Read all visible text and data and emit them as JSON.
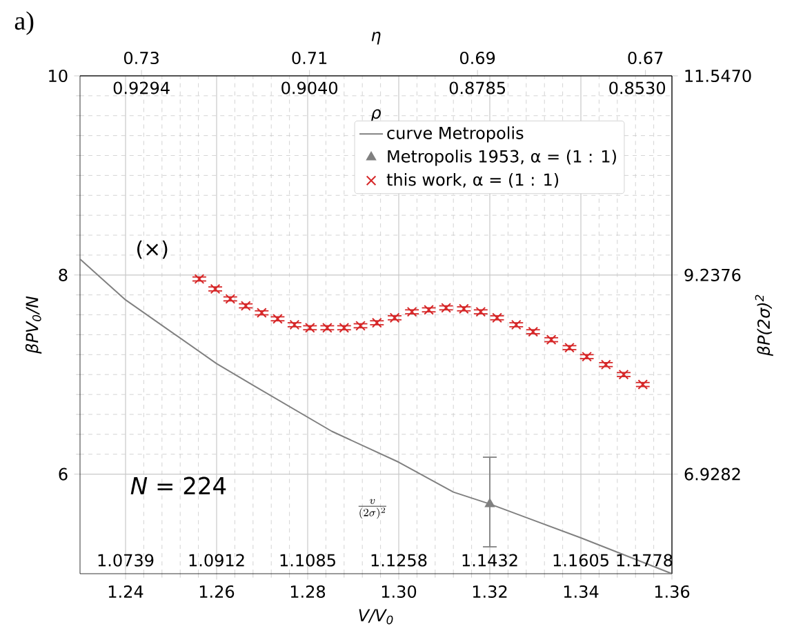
{
  "chart_data": {
    "type": "scatter",
    "title": "a)",
    "xlabel": "V/V$_{0}$",
    "ylabel": "βPV$_{0}$/N",
    "y2label": "βP(2σ)$^{2}$",
    "x2label": "η",
    "xlim": [
      1.23,
      1.36
    ],
    "xticks": [
      1.24,
      1.26,
      1.28,
      {
        "value": 1.3,
        "label": "1.30"
      },
      1.32,
      1.34,
      1.36
    ],
    "ylim": [
      5,
      10
    ],
    "yticks": [
      6,
      8,
      10
    ],
    "y2lim": [
      5.7735,
      11.547
    ],
    "y2ticks": [
      6.9282,
      9.2376,
      {
        "value": 11.547,
        "label": "11.5470"
      }
    ],
    "x2lim": [
      0.73732,
      0.66685
    ],
    "x2ticks": [
      0.73,
      0.71,
      0.69,
      0.67
    ],
    "grid": true,
    "legend": "top right",
    "annotations": [
      "*N* = 224",
      "(×)",
      "ρ",
      "0.9294",
      "0.9040",
      "0.8785",
      "0.8530",
      "\\frac{v}{(2\\sigma)^{2}}",
      "1.0739",
      "1.0912",
      "1.1085",
      "1.1258",
      "1.1432",
      "1.1605",
      "1.1778"
    ],
    "series": [
      {
        "name": "curve Metropolis",
        "type": "line",
        "color": "#808080",
        "marker": "none",
        "x": [
          1.23,
          1.24,
          1.26,
          1.2685,
          1.2853,
          1.3,
          1.312,
          1.32,
          1.34,
          1.36
        ],
        "values": [
          8.16,
          7.75,
          7.11,
          6.88,
          6.43,
          6.12,
          5.82,
          5.7,
          5.36,
          5.0
        ]
      },
      {
        "name": "Metropolis 1953, α = (1 : 1)",
        "type": "scatter",
        "color": "#808080",
        "marker": "triangle",
        "x": [
          1.32
        ],
        "values": [
          5.7
        ],
        "errors": [
          [
            5.27,
            6.17
          ]
        ]
      },
      {
        "name": "this work, α = (1 : 1)",
        "color": "#d62728",
        "marker": "cross",
        "x": [
          1.2562,
          1.2597,
          1.263,
          1.2664,
          1.2699,
          1.2734,
          1.2771,
          1.2805,
          1.2843,
          1.288,
          1.2916,
          1.2952,
          1.2991,
          1.3029,
          1.3066,
          1.3104,
          1.3143,
          1.318,
          1.3216,
          1.3258,
          1.3295,
          1.3335,
          1.3375,
          1.3413,
          1.3455,
          1.3494,
          1.3536
        ],
        "values": [
          7.96,
          7.86,
          7.76,
          7.69,
          7.62,
          7.56,
          7.5,
          7.47,
          7.47,
          7.47,
          7.49,
          7.52,
          7.57,
          7.63,
          7.65,
          7.67,
          7.66,
          7.63,
          7.57,
          7.5,
          7.43,
          7.35,
          7.27,
          7.18,
          7.1,
          7.0,
          6.9
        ],
        "errors": [
          0.02,
          0.02,
          0.02,
          0.02,
          0.02,
          0.02,
          0.02,
          0.02,
          0.02,
          0.02,
          0.02,
          0.02,
          0.02,
          0.02,
          0.02,
          0.02,
          0.02,
          0.02,
          0.02,
          0.02,
          0.02,
          0.02,
          0.02,
          0.02,
          0.02,
          0.02,
          0.02
        ]
      }
    ]
  }
}
